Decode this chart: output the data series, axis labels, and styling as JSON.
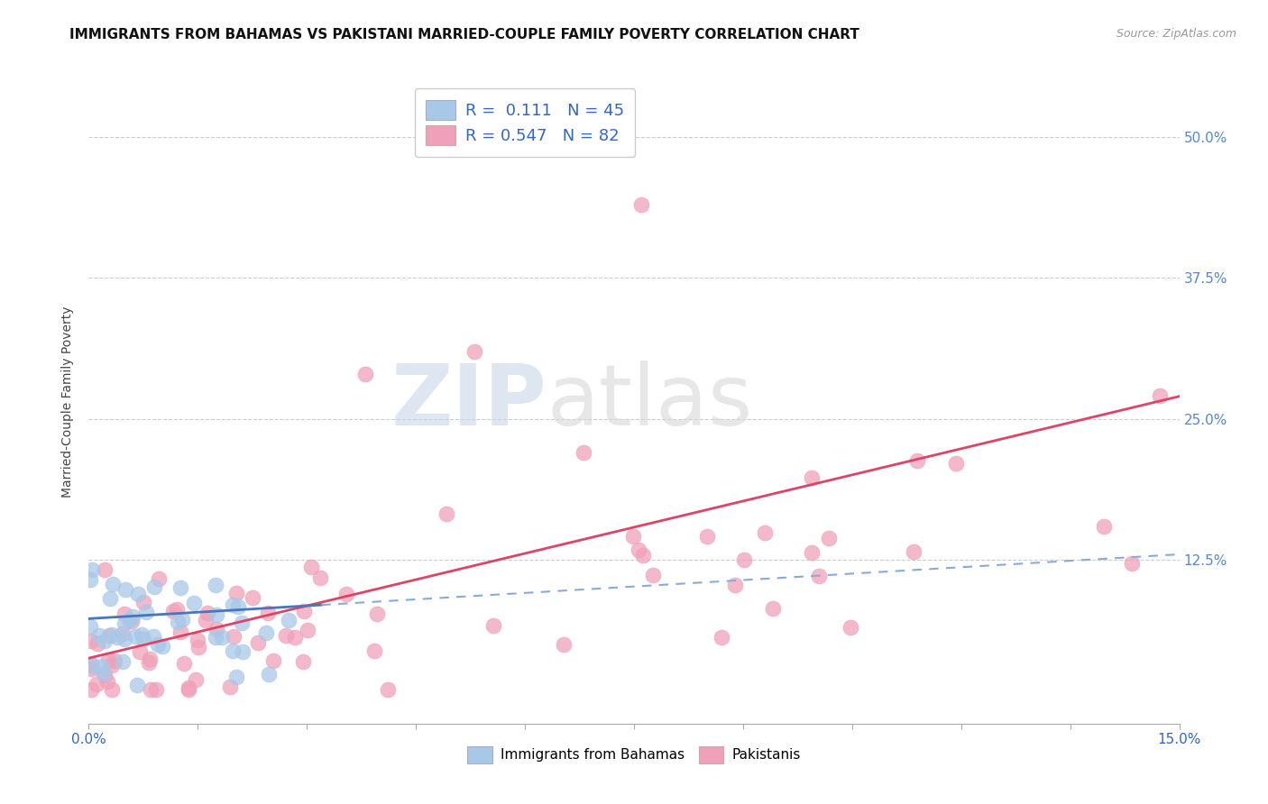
{
  "title": "IMMIGRANTS FROM BAHAMAS VS PAKISTANI MARRIED-COUPLE FAMILY POVERTY CORRELATION CHART",
  "source_text": "Source: ZipAtlas.com",
  "ylabel": "Married-Couple Family Poverty",
  "xlim": [
    0.0,
    0.15
  ],
  "ylim": [
    -0.02,
    0.55
  ],
  "ytick_positions": [
    0.125,
    0.25,
    0.375,
    0.5
  ],
  "right_ytick_labels": [
    "12.5%",
    "25.0%",
    "37.5%",
    "50.0%"
  ],
  "watermark_zip": "ZIP",
  "watermark_atlas": "atlas",
  "legend_label1": "Immigrants from Bahamas",
  "legend_label2": "Pakistanis",
  "color_blue": "#a8c8e8",
  "color_pink": "#f0a0b8",
  "line_blue_solid": "#4477bb",
  "line_blue_dash": "#88aadd",
  "line_pink": "#dd4466",
  "bg_color": "#ffffff",
  "grid_color": "#cccccc",
  "title_fontsize": 11,
  "axis_label_fontsize": 10,
  "tick_fontsize": 11,
  "legend_text_color": "#3366cc",
  "right_tick_color": "#5588cc",
  "source_color": "#999999"
}
